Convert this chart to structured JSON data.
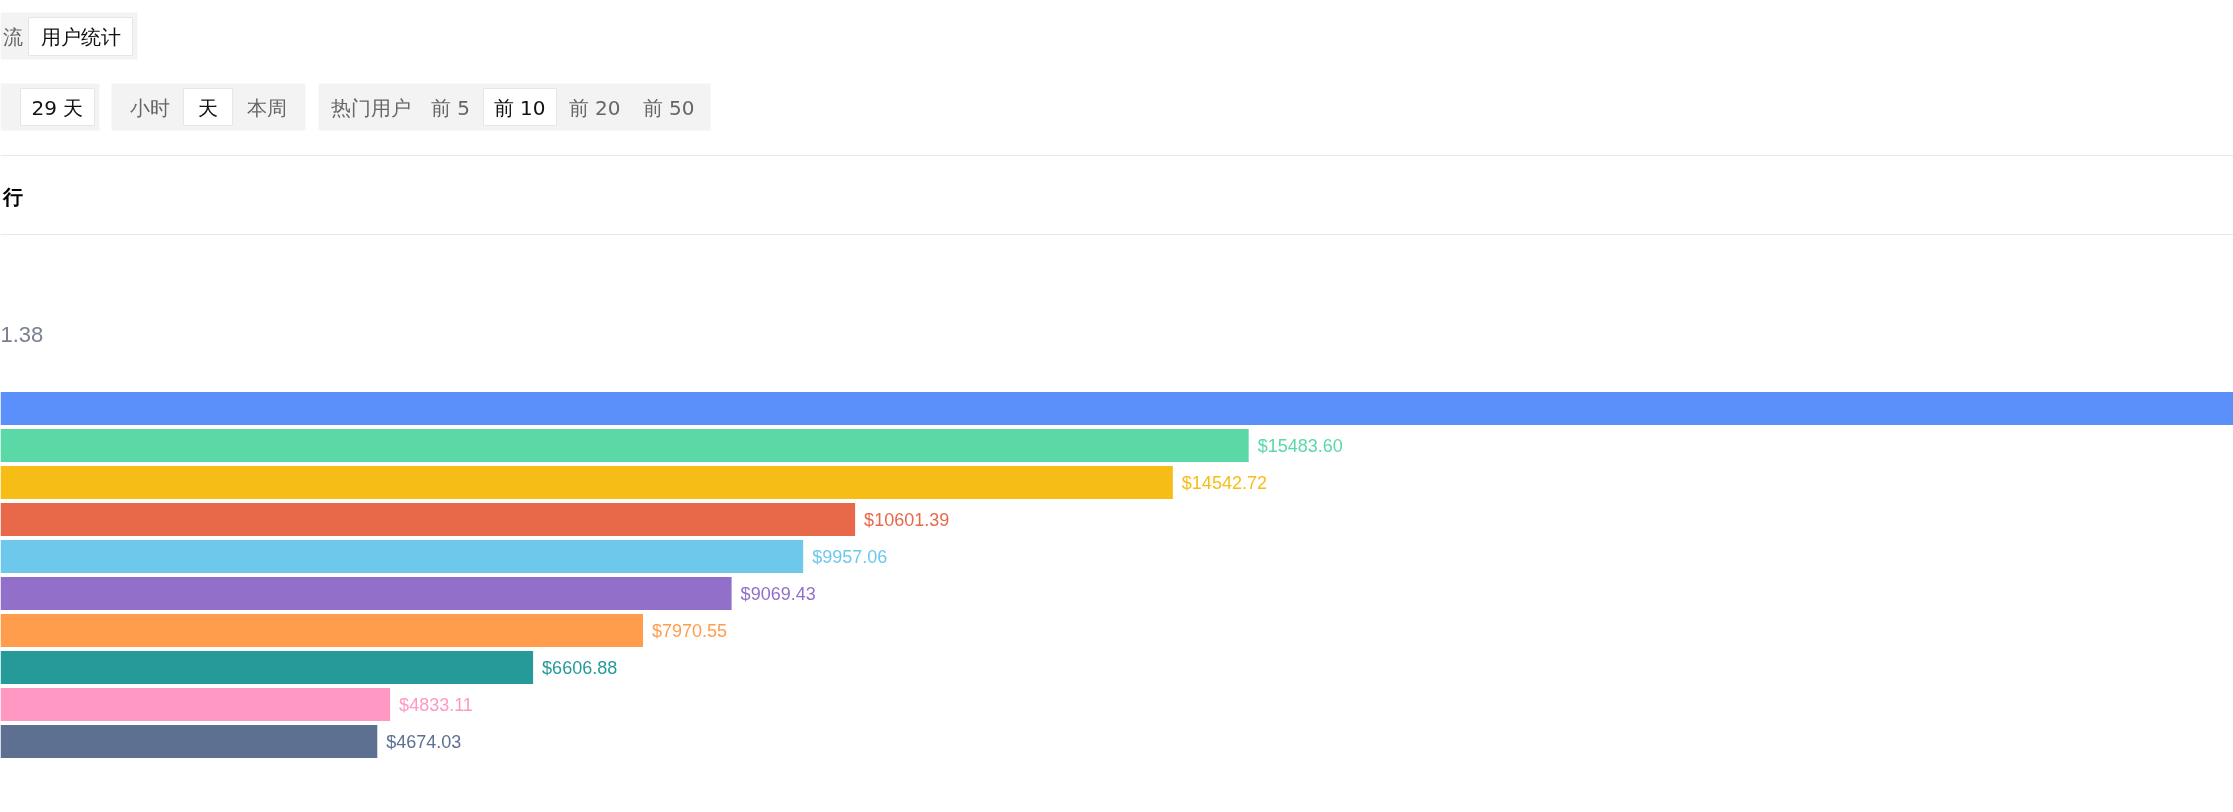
{
  "chart_data": {
    "type": "bar",
    "orientation": "horizontal",
    "title": "行",
    "subtitle": "1.38",
    "annotations": [
      "流",
      "用户统计",
      "29 天",
      "小时",
      "天",
      "本周",
      "热门用户",
      "前 5",
      "前 10",
      "前 20",
      "前 50"
    ],
    "categories": [
      null,
      null,
      null,
      null,
      null,
      null,
      null,
      null,
      null,
      null
    ],
    "values": [
      27700,
      15483.6,
      14542.72,
      10601.39,
      9957.06,
      9069.43,
      7970.55,
      6606.88,
      4833.11,
      4674.03
    ],
    "colors": [
      "#5b8ff9",
      "#5ad8a6",
      "#f6bd16",
      "#e8684a",
      "#6dc8ec",
      "#9270ca",
      "#ff9d4d",
      "#269a99",
      "#ff99c3",
      "#5d7092"
    ],
    "value_labels": [
      null,
      "$15483.60",
      "$14542.72",
      "$10601.39",
      "$9957.06",
      "$9069.43",
      "$7970.55",
      "$6606.88",
      "$4833.11",
      "$4674.03"
    ]
  }
}
